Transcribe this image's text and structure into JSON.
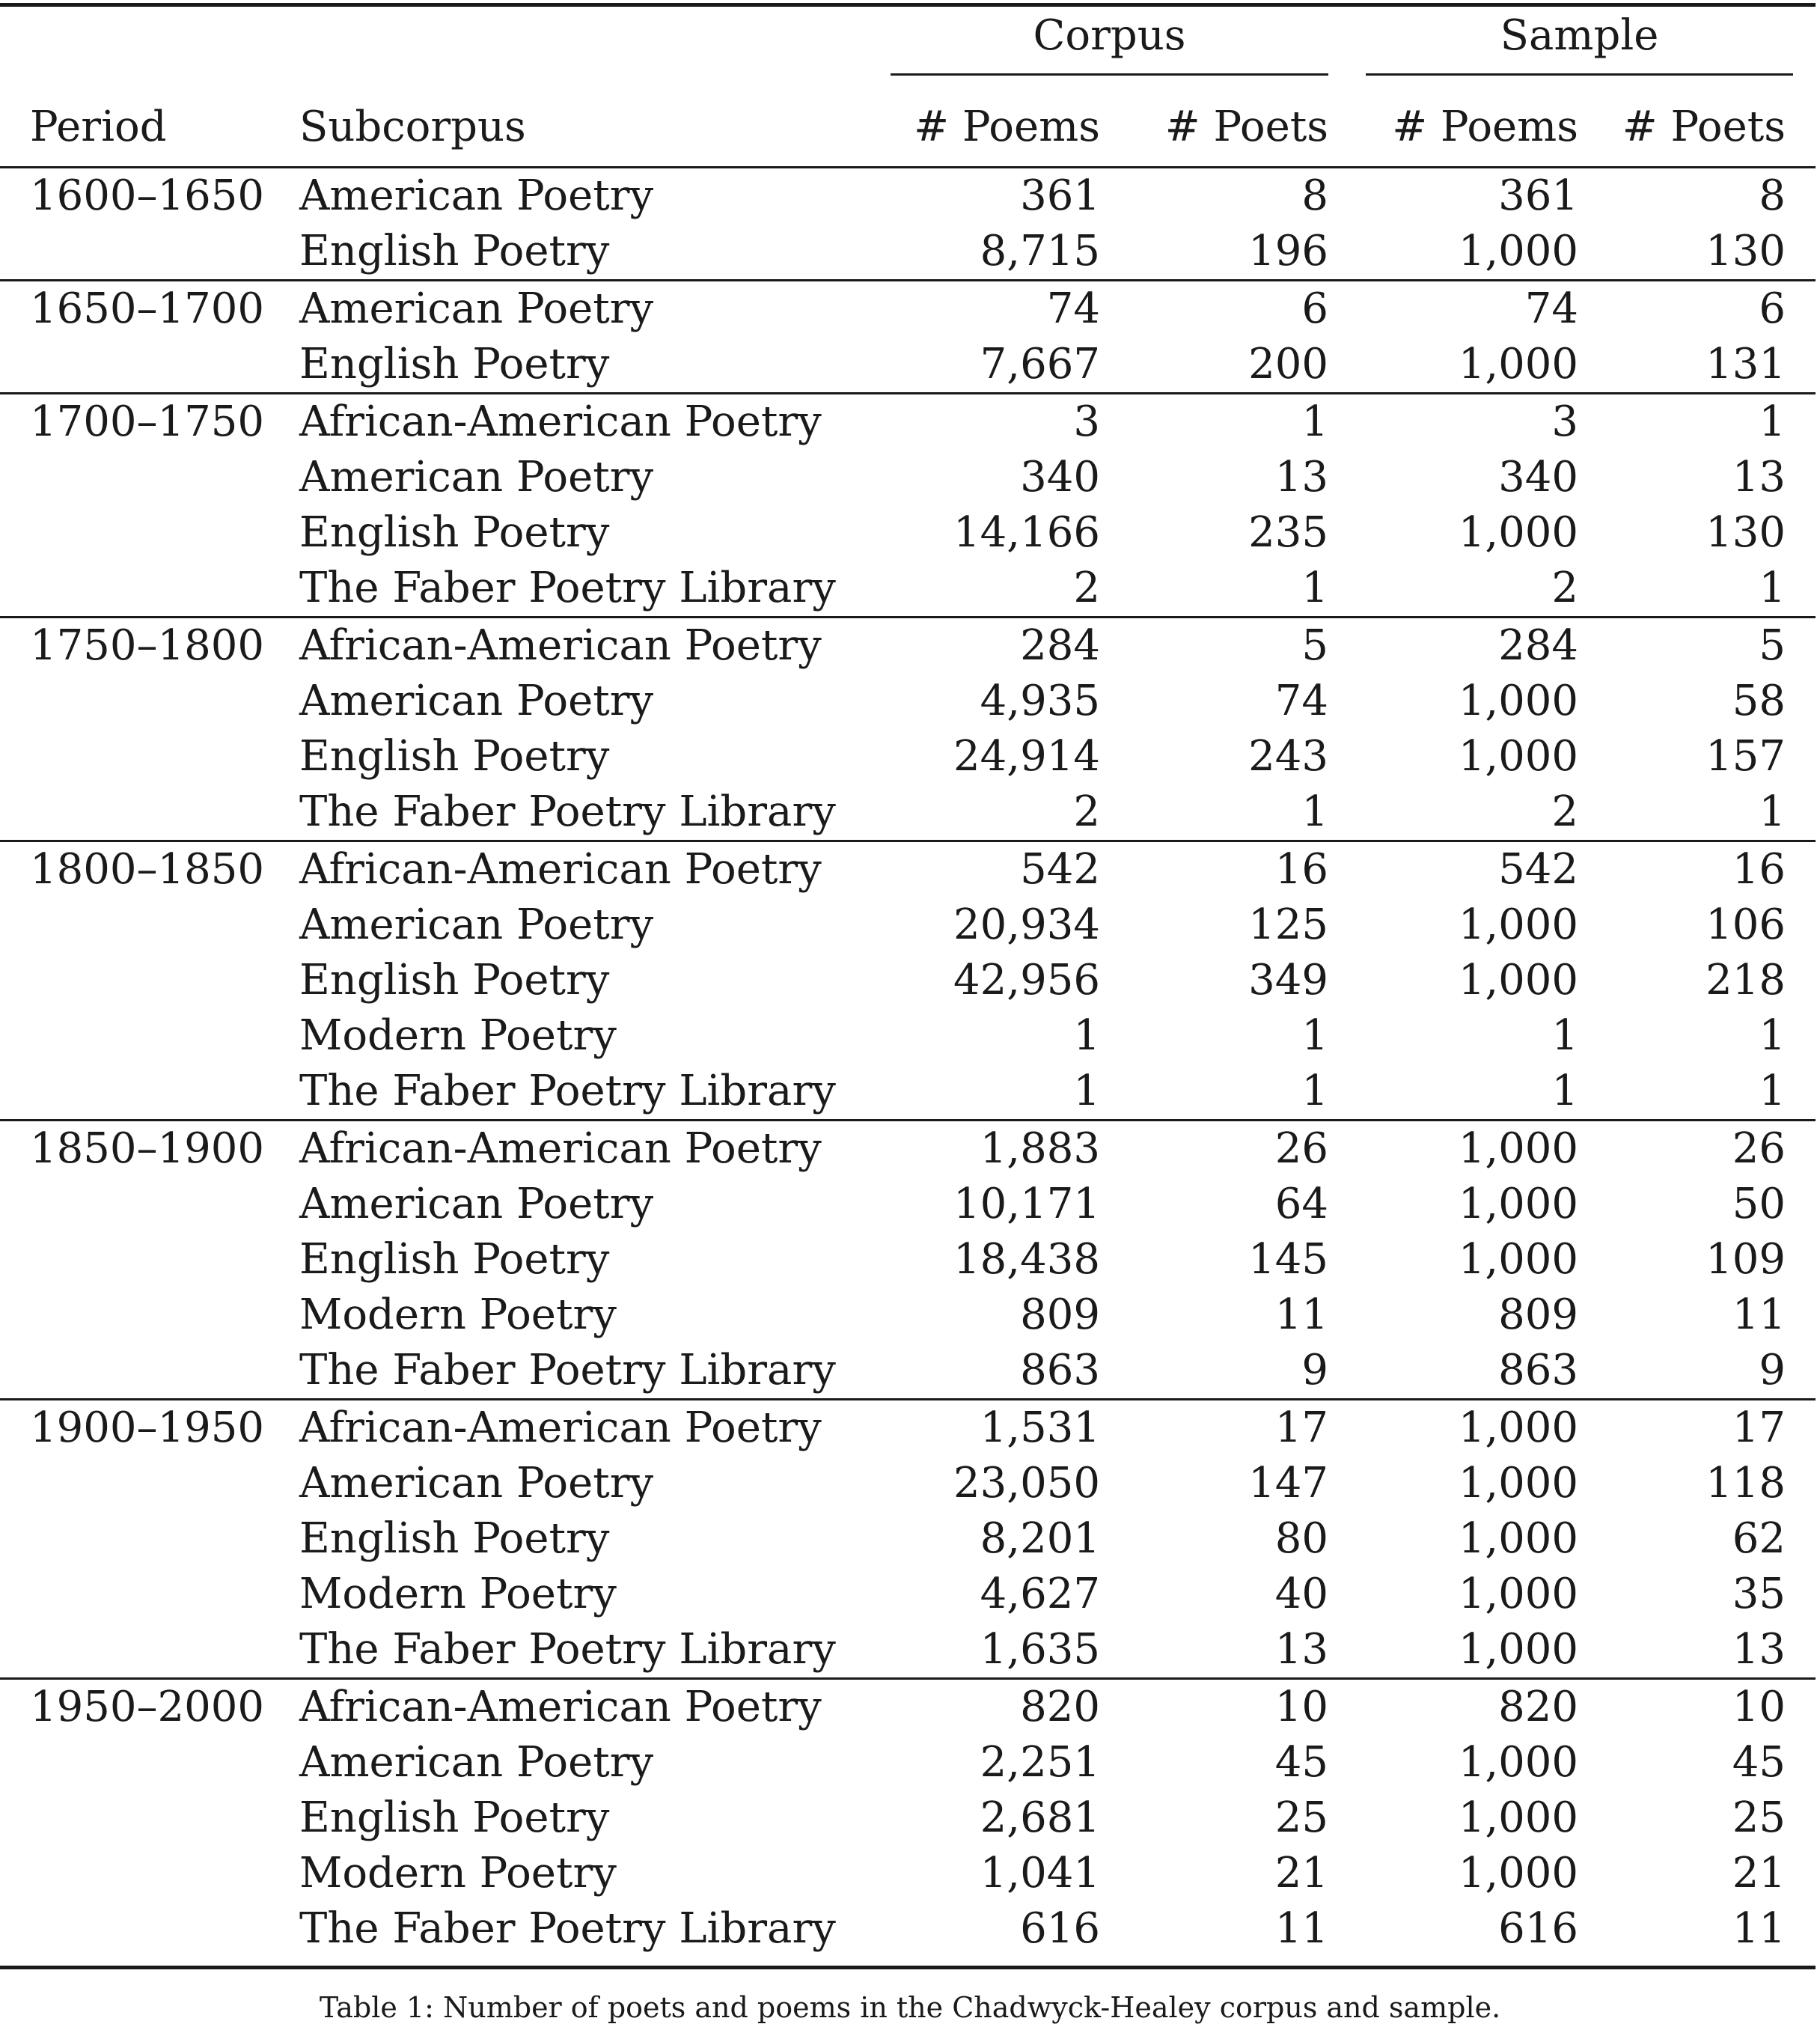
{
  "table": {
    "group_headers": {
      "corpus": "Corpus",
      "sample": "Sample"
    },
    "column_headers": {
      "period": "Period",
      "subcorpus": "Subcorpus",
      "corpus_poems": "# Poems",
      "corpus_poets": "# Poets",
      "sample_poems": "# Poems",
      "sample_poets": "# Poets"
    },
    "groups": [
      {
        "period": "1600–1650",
        "rows": [
          {
            "subcorpus": "American Poetry",
            "corpus_poems": "361",
            "corpus_poets": "8",
            "sample_poems": "361",
            "sample_poets": "8"
          },
          {
            "subcorpus": "English Poetry",
            "corpus_poems": "8,715",
            "corpus_poets": "196",
            "sample_poems": "1,000",
            "sample_poets": "130"
          }
        ]
      },
      {
        "period": "1650–1700",
        "rows": [
          {
            "subcorpus": "American Poetry",
            "corpus_poems": "74",
            "corpus_poets": "6",
            "sample_poems": "74",
            "sample_poets": "6"
          },
          {
            "subcorpus": "English Poetry",
            "corpus_poems": "7,667",
            "corpus_poets": "200",
            "sample_poems": "1,000",
            "sample_poets": "131"
          }
        ]
      },
      {
        "period": "1700–1750",
        "rows": [
          {
            "subcorpus": "African-American Poetry",
            "corpus_poems": "3",
            "corpus_poets": "1",
            "sample_poems": "3",
            "sample_poets": "1"
          },
          {
            "subcorpus": "American Poetry",
            "corpus_poems": "340",
            "corpus_poets": "13",
            "sample_poems": "340",
            "sample_poets": "13"
          },
          {
            "subcorpus": "English Poetry",
            "corpus_poems": "14,166",
            "corpus_poets": "235",
            "sample_poems": "1,000",
            "sample_poets": "130"
          },
          {
            "subcorpus": "The Faber Poetry Library",
            "corpus_poems": "2",
            "corpus_poets": "1",
            "sample_poems": "2",
            "sample_poets": "1"
          }
        ]
      },
      {
        "period": "1750–1800",
        "rows": [
          {
            "subcorpus": "African-American Poetry",
            "corpus_poems": "284",
            "corpus_poets": "5",
            "sample_poems": "284",
            "sample_poets": "5"
          },
          {
            "subcorpus": "American Poetry",
            "corpus_poems": "4,935",
            "corpus_poets": "74",
            "sample_poems": "1,000",
            "sample_poets": "58"
          },
          {
            "subcorpus": "English Poetry",
            "corpus_poems": "24,914",
            "corpus_poets": "243",
            "sample_poems": "1,000",
            "sample_poets": "157"
          },
          {
            "subcorpus": "The Faber Poetry Library",
            "corpus_poems": "2",
            "corpus_poets": "1",
            "sample_poems": "2",
            "sample_poets": "1"
          }
        ]
      },
      {
        "period": "1800–1850",
        "rows": [
          {
            "subcorpus": "African-American Poetry",
            "corpus_poems": "542",
            "corpus_poets": "16",
            "sample_poems": "542",
            "sample_poets": "16"
          },
          {
            "subcorpus": "American Poetry",
            "corpus_poems": "20,934",
            "corpus_poets": "125",
            "sample_poems": "1,000",
            "sample_poets": "106"
          },
          {
            "subcorpus": "English Poetry",
            "corpus_poems": "42,956",
            "corpus_poets": "349",
            "sample_poems": "1,000",
            "sample_poets": "218"
          },
          {
            "subcorpus": "Modern Poetry",
            "corpus_poems": "1",
            "corpus_poets": "1",
            "sample_poems": "1",
            "sample_poets": "1"
          },
          {
            "subcorpus": "The Faber Poetry Library",
            "corpus_poems": "1",
            "corpus_poets": "1",
            "sample_poems": "1",
            "sample_poets": "1"
          }
        ]
      },
      {
        "period": "1850–1900",
        "rows": [
          {
            "subcorpus": "African-American Poetry",
            "corpus_poems": "1,883",
            "corpus_poets": "26",
            "sample_poems": "1,000",
            "sample_poets": "26"
          },
          {
            "subcorpus": "American Poetry",
            "corpus_poems": "10,171",
            "corpus_poets": "64",
            "sample_poems": "1,000",
            "sample_poets": "50"
          },
          {
            "subcorpus": "English Poetry",
            "corpus_poems": "18,438",
            "corpus_poets": "145",
            "sample_poems": "1,000",
            "sample_poets": "109"
          },
          {
            "subcorpus": "Modern Poetry",
            "corpus_poems": "809",
            "corpus_poets": "11",
            "sample_poems": "809",
            "sample_poets": "11"
          },
          {
            "subcorpus": "The Faber Poetry Library",
            "corpus_poems": "863",
            "corpus_poets": "9",
            "sample_poems": "863",
            "sample_poets": "9"
          }
        ]
      },
      {
        "period": "1900–1950",
        "rows": [
          {
            "subcorpus": "African-American Poetry",
            "corpus_poems": "1,531",
            "corpus_poets": "17",
            "sample_poems": "1,000",
            "sample_poets": "17"
          },
          {
            "subcorpus": "American Poetry",
            "corpus_poems": "23,050",
            "corpus_poets": "147",
            "sample_poems": "1,000",
            "sample_poets": "118"
          },
          {
            "subcorpus": "English Poetry",
            "corpus_poems": "8,201",
            "corpus_poets": "80",
            "sample_poems": "1,000",
            "sample_poets": "62"
          },
          {
            "subcorpus": "Modern Poetry",
            "corpus_poems": "4,627",
            "corpus_poets": "40",
            "sample_poems": "1,000",
            "sample_poets": "35"
          },
          {
            "subcorpus": "The Faber Poetry Library",
            "corpus_poems": "1,635",
            "corpus_poets": "13",
            "sample_poems": "1,000",
            "sample_poets": "13"
          }
        ]
      },
      {
        "period": "1950–2000",
        "rows": [
          {
            "subcorpus": "African-American Poetry",
            "corpus_poems": "820",
            "corpus_poets": "10",
            "sample_poems": "820",
            "sample_poets": "10"
          },
          {
            "subcorpus": "American Poetry",
            "corpus_poems": "2,251",
            "corpus_poets": "45",
            "sample_poems": "1,000",
            "sample_poets": "45"
          },
          {
            "subcorpus": "English Poetry",
            "corpus_poems": "2,681",
            "corpus_poets": "25",
            "sample_poems": "1,000",
            "sample_poets": "25"
          },
          {
            "subcorpus": "Modern Poetry",
            "corpus_poems": "1,041",
            "corpus_poets": "21",
            "sample_poems": "1,000",
            "sample_poets": "21"
          },
          {
            "subcorpus": "The Faber Poetry Library",
            "corpus_poems": "616",
            "corpus_poets": "11",
            "sample_poems": "616",
            "sample_poets": "11"
          }
        ]
      }
    ]
  },
  "caption": "Table 1: Number of poets and poems in the Chadwyck-Healey corpus and sample."
}
